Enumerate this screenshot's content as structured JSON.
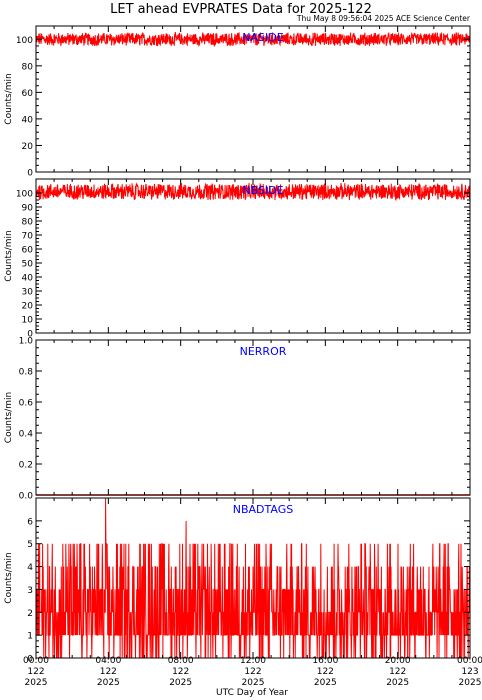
{
  "figure": {
    "title": "LET ahead EVPRATES Data for 2025-122",
    "timestamp": "Thu May  8 09:56:04 2025 ACE Science Center",
    "xlabel": "UTC Day of Year"
  },
  "colors": {
    "data": "#ff0000",
    "panel_label": "#0000ff",
    "axes": "#000000"
  },
  "x_ticks": [
    {
      "time": "00:00",
      "doy": "122",
      "year": "2025",
      "hour": 0
    },
    {
      "time": "04:00",
      "doy": "122",
      "year": "2025",
      "hour": 4
    },
    {
      "time": "08:00",
      "doy": "122",
      "year": "2025",
      "hour": 8
    },
    {
      "time": "12:00",
      "doy": "122",
      "year": "2025",
      "hour": 12
    },
    {
      "time": "16:00",
      "doy": "122",
      "year": "2025",
      "hour": 16
    },
    {
      "time": "20:00",
      "doy": "122",
      "year": "2025",
      "hour": 20
    },
    {
      "time": "00:00",
      "doy": "123",
      "year": "2025",
      "hour": 24
    }
  ],
  "chart_data": [
    {
      "type": "line",
      "label": "NASIDE",
      "ylabel": "Counts/min",
      "ylim": [
        0,
        110
      ],
      "yticks": [
        0,
        20,
        40,
        60,
        80,
        100
      ],
      "xlim_hours": [
        0,
        24
      ],
      "series": {
        "pattern": "noise",
        "mean": 100,
        "range": [
          95,
          105
        ]
      }
    },
    {
      "type": "line",
      "label": "NBSIDE",
      "ylabel": "Counts/min",
      "ylim": [
        0,
        110
      ],
      "yticks": [
        0,
        10,
        20,
        30,
        40,
        50,
        60,
        70,
        80,
        90,
        100
      ],
      "xlim_hours": [
        0,
        24
      ],
      "series": {
        "pattern": "noise",
        "mean": 101,
        "range": [
          95,
          107
        ]
      }
    },
    {
      "type": "line",
      "label": "NERROR",
      "ylabel": "Counts/min",
      "ylim": [
        0,
        1
      ],
      "yticks": [
        0.0,
        0.2,
        0.4,
        0.6,
        0.8,
        1.0
      ],
      "xlim_hours": [
        0,
        24
      ],
      "series": {
        "pattern": "constant",
        "value": 0
      }
    },
    {
      "type": "line",
      "label": "NBADTAGS",
      "ylabel": "Counts/min",
      "ylim": [
        0,
        7
      ],
      "yticks": [
        0,
        1,
        2,
        3,
        4,
        5,
        6
      ],
      "xlim_hours": [
        0,
        24
      ],
      "series": {
        "pattern": "spiky",
        "levels": [
          0,
          1,
          2,
          3,
          4,
          5
        ],
        "peaks": [
          {
            "hour": 3.85,
            "value": 7
          },
          {
            "hour": 8.3,
            "value": 6
          }
        ]
      }
    }
  ]
}
